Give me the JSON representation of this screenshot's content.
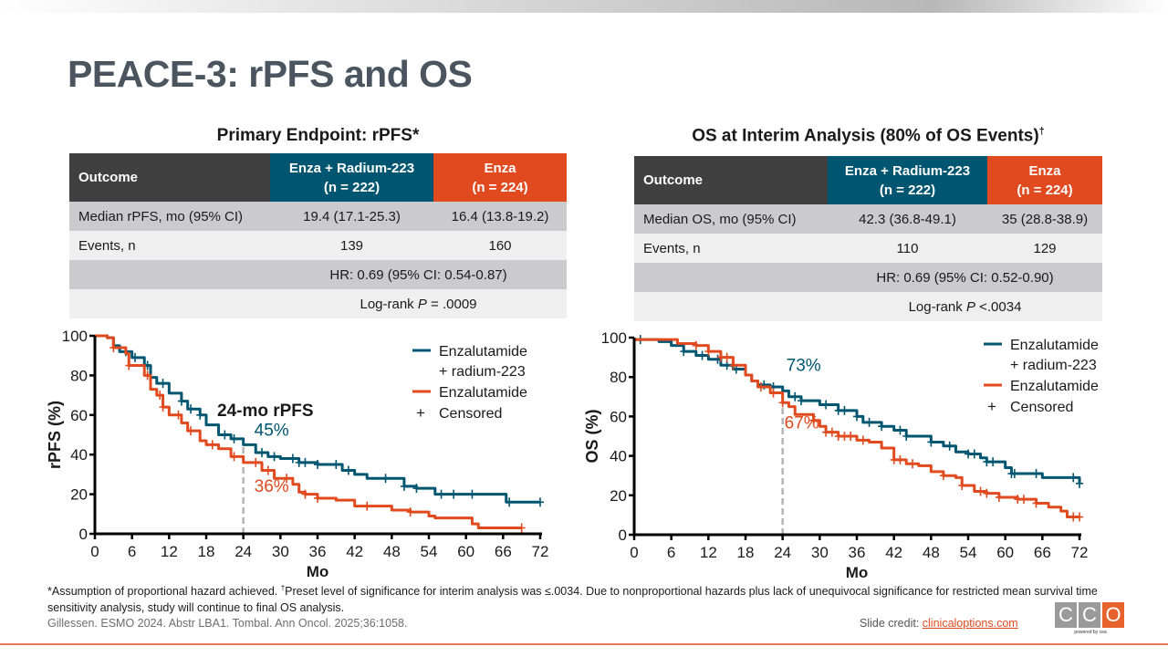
{
  "slide": {
    "title": "PEACE-3: rPFS and OS",
    "colors": {
      "teal": "#005670",
      "orange": "#e04a1e",
      "dark_header": "#404040",
      "title_gray": "#4a5560"
    }
  },
  "tables": [
    {
      "title": "Primary Endpoint: rPFS",
      "title_mark": "*",
      "header": {
        "outcome": "Outcome",
        "arm1_line1": "Enza + Radium-223",
        "arm1_line2": "(n = 222)",
        "arm2_line1": "Enza",
        "arm2_line2": "(n = 224)"
      },
      "rows": [
        {
          "label": "Median rPFS, mo (95% CI)",
          "arm1": "19.4 (17.1-25.3)",
          "arm2": "16.4 (13.8-19.2)"
        },
        {
          "label": "Events, n",
          "arm1": "139",
          "arm2": "160"
        }
      ],
      "hr": "HR: 0.69 (95% CI: 0.54-0.87)",
      "logrank_prefix": "Log-rank ",
      "logrank_p": "P",
      "logrank_value": " = .0009"
    },
    {
      "title": "OS at Interim Analysis (80% of OS Events)",
      "title_mark": "†",
      "header": {
        "outcome": "Outcome",
        "arm1_line1": "Enza + Radium-223",
        "arm1_line2": "(n = 222)",
        "arm2_line1": "Enza",
        "arm2_line2": "(n = 224)"
      },
      "rows": [
        {
          "label": "Median OS, mo (95% CI)",
          "arm1": "42.3 (36.8-49.1)",
          "arm2": "35 (28.8-38.9)"
        },
        {
          "label": "Events, n",
          "arm1": "110",
          "arm2": "129"
        }
      ],
      "hr": "HR: 0.69 (95% CI: 0.52-0.90)",
      "logrank_prefix": "Log-rank ",
      "logrank_p": "P",
      "logrank_value": " <.0034"
    }
  ],
  "chart_data": [
    {
      "type": "line",
      "subtype": "kaplan-meier",
      "title": "",
      "annotation": "24-mo rPFS",
      "xlabel": "Mo",
      "ylabel": "rPFS (%)",
      "xlim": [
        0,
        72
      ],
      "ylim": [
        0,
        100
      ],
      "xticks": [
        0,
        6,
        12,
        18,
        24,
        30,
        36,
        42,
        48,
        54,
        60,
        66,
        72
      ],
      "yticks": [
        0,
        20,
        40,
        60,
        80,
        100
      ],
      "grid": false,
      "legend_position": "top-right",
      "legend": [
        "Enzalutamide",
        "+ radium-223",
        "Enzalutamide",
        "Censored"
      ],
      "censored_symbol": "+",
      "reference_x": 24,
      "series": [
        {
          "name": "Enzalutamide + radium-223",
          "color": "#005670",
          "label_at_24": "45%",
          "x": [
            0,
            2,
            3,
            4,
            6,
            8,
            9,
            10,
            12,
            14,
            15,
            17,
            18,
            20,
            22,
            24,
            26,
            28,
            30,
            33,
            36,
            40,
            42,
            44,
            48,
            50,
            52,
            55,
            66,
            66.5,
            72
          ],
          "y": [
            100,
            99,
            95,
            92,
            89,
            85,
            79,
            76,
            71,
            67,
            63,
            60,
            55,
            50,
            48,
            45,
            41,
            39,
            38,
            36,
            35,
            32,
            30,
            28,
            28,
            24,
            23,
            20,
            20,
            16,
            16
          ],
          "censored_x": [
            5,
            6.5,
            8.5,
            11,
            14,
            15.5,
            17,
            21,
            22.5,
            27,
            29,
            32,
            33,
            34,
            36,
            39,
            41,
            47,
            50,
            52,
            56,
            58,
            61,
            67,
            72
          ]
        },
        {
          "name": "Enzalutamide",
          "color": "#e04a1e",
          "label_at_24": "36%",
          "x": [
            0,
            2,
            3,
            5,
            5.5,
            8,
            9,
            10,
            11,
            12,
            14,
            15,
            17,
            18,
            20,
            22,
            24,
            27,
            29,
            32,
            33,
            34,
            36,
            39,
            42,
            46,
            48,
            51,
            54,
            55,
            60,
            61,
            62,
            69
          ],
          "y": [
            100,
            99,
            94,
            91,
            85,
            80,
            73,
            70,
            64,
            60,
            56,
            52,
            47,
            45,
            43,
            39,
            36,
            32,
            28,
            25,
            21,
            20,
            18,
            17,
            14,
            14,
            12,
            11,
            9,
            8,
            8,
            5,
            3,
            3
          ],
          "censored_x": [
            3,
            5.5,
            8.5,
            10.5,
            11,
            13.5,
            15.5,
            19,
            22.5,
            26,
            28,
            31,
            34,
            36,
            44,
            51,
            69
          ]
        }
      ]
    },
    {
      "type": "line",
      "subtype": "kaplan-meier",
      "title": "",
      "xlabel": "Mo",
      "ylabel": "OS (%)",
      "xlim": [
        0,
        72
      ],
      "ylim": [
        0,
        100
      ],
      "xticks": [
        0,
        6,
        12,
        18,
        24,
        30,
        36,
        42,
        48,
        54,
        60,
        66,
        72
      ],
      "yticks": [
        0,
        20,
        40,
        60,
        80,
        100
      ],
      "grid": false,
      "legend_position": "top-right",
      "legend": [
        "Enzalutamide",
        "+ radium-223",
        "Enzalutamide",
        "Censored"
      ],
      "censored_symbol": "+",
      "reference_x": 24,
      "series": [
        {
          "name": "Enzalutamide + radium-223",
          "color": "#005670",
          "label_at_24": "73%",
          "x": [
            0,
            4,
            6,
            8,
            10,
            12,
            14,
            16,
            18,
            19,
            20,
            22,
            24,
            25,
            27,
            30,
            33,
            36,
            37,
            40,
            42,
            44,
            48,
            50,
            52,
            54,
            56,
            57,
            60,
            61,
            65,
            66,
            71,
            72
          ],
          "y": [
            99,
            98,
            96,
            93,
            91,
            89,
            86,
            84,
            81,
            78,
            76,
            75,
            73,
            70,
            68,
            66,
            63,
            60,
            57,
            55,
            53,
            50,
            47,
            45,
            42,
            41,
            39,
            37,
            34,
            31,
            31,
            29,
            29,
            26
          ],
          "censored_x": [
            1,
            8,
            11,
            13.5,
            15,
            16.5,
            21,
            22.5,
            26,
            27,
            31,
            33,
            34,
            36,
            38,
            40,
            43,
            44,
            48,
            51,
            54,
            55,
            57,
            58,
            61,
            61.5,
            65,
            71,
            72
          ]
        },
        {
          "name": "Enzalutamide",
          "color": "#e04a1e",
          "label_at_24": "67%",
          "x": [
            0,
            5,
            7,
            10,
            12,
            14,
            16,
            18,
            19,
            20,
            22,
            24,
            25,
            26,
            29,
            30,
            31,
            33,
            36,
            38,
            40,
            42,
            44,
            46,
            48,
            50,
            52,
            53,
            55,
            57,
            59,
            62,
            65,
            67,
            69,
            70,
            72
          ],
          "y": [
            99,
            99,
            97,
            96,
            93,
            90,
            86,
            81,
            78,
            75,
            72,
            67,
            65,
            61,
            58,
            55,
            52,
            50,
            48,
            47,
            44,
            38,
            36,
            35,
            32,
            30,
            29,
            25,
            22,
            21,
            19,
            18,
            16,
            14,
            12,
            9,
            9
          ],
          "censored_x": [
            10,
            12,
            14,
            15,
            16,
            20.5,
            22.5,
            24,
            29,
            31,
            32,
            33,
            34,
            35,
            37,
            42,
            43,
            45,
            50,
            53,
            56,
            57,
            59,
            62,
            63,
            65,
            71,
            72
          ]
        }
      ]
    }
  ],
  "footer": {
    "note_a_mark": "*",
    "note_a": "Assumption of proportional hazard achieved. ",
    "note_b_mark": "†",
    "note_b": "Preset level of significance for interim analysis was ≤.0034. Due to nonproportional hazards plus lack of unequivocal significance for restricted mean survival time sensitivity analysis, study will continue to final OS analysis.",
    "citation": "Gillessen. ESMO 2024. Abstr LBA1. Tombal. Ann Oncol. 2025;36:1058.",
    "credit_label": "Slide credit: ",
    "credit_link": "clinicaloptions.com",
    "logo_letters": [
      "C",
      "C",
      "O"
    ],
    "logo_sub": "powered by cea"
  }
}
